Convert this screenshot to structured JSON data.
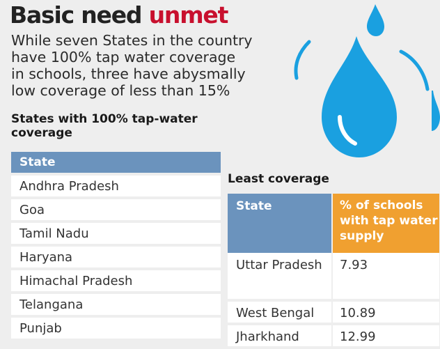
{
  "header": {
    "title_main": "Basic need",
    "title_highlight": "unmet",
    "subtitle": "While seven States in the country\nhave 100% tap water coverage\nin schools, three have abysmally\nlow coverage of less than 15%"
  },
  "colors": {
    "highlight": "#c8102e",
    "table_header_blue": "#6b93bd",
    "table_header_orange": "#f0a030",
    "drop_blue": "#1aa0e0"
  },
  "icons": [
    "water-drop-icon"
  ],
  "chart_data": [
    {
      "type": "table",
      "title": "States with 100% tap-water coverage",
      "columns": [
        "State"
      ],
      "rows": [
        [
          "Andhra Pradesh"
        ],
        [
          "Goa"
        ],
        [
          "Tamil Nadu"
        ],
        [
          "Haryana"
        ],
        [
          "Himachal Pradesh"
        ],
        [
          "Telangana"
        ],
        [
          "Punjab"
        ]
      ]
    },
    {
      "type": "table",
      "title": "Least coverage",
      "columns": [
        "State",
        "% of schools with tap water supply"
      ],
      "rows": [
        [
          "Uttar Pradesh",
          "7.93"
        ],
        [
          "West Bengal",
          "10.89"
        ],
        [
          "Jharkhand",
          "12.99"
        ]
      ]
    }
  ]
}
